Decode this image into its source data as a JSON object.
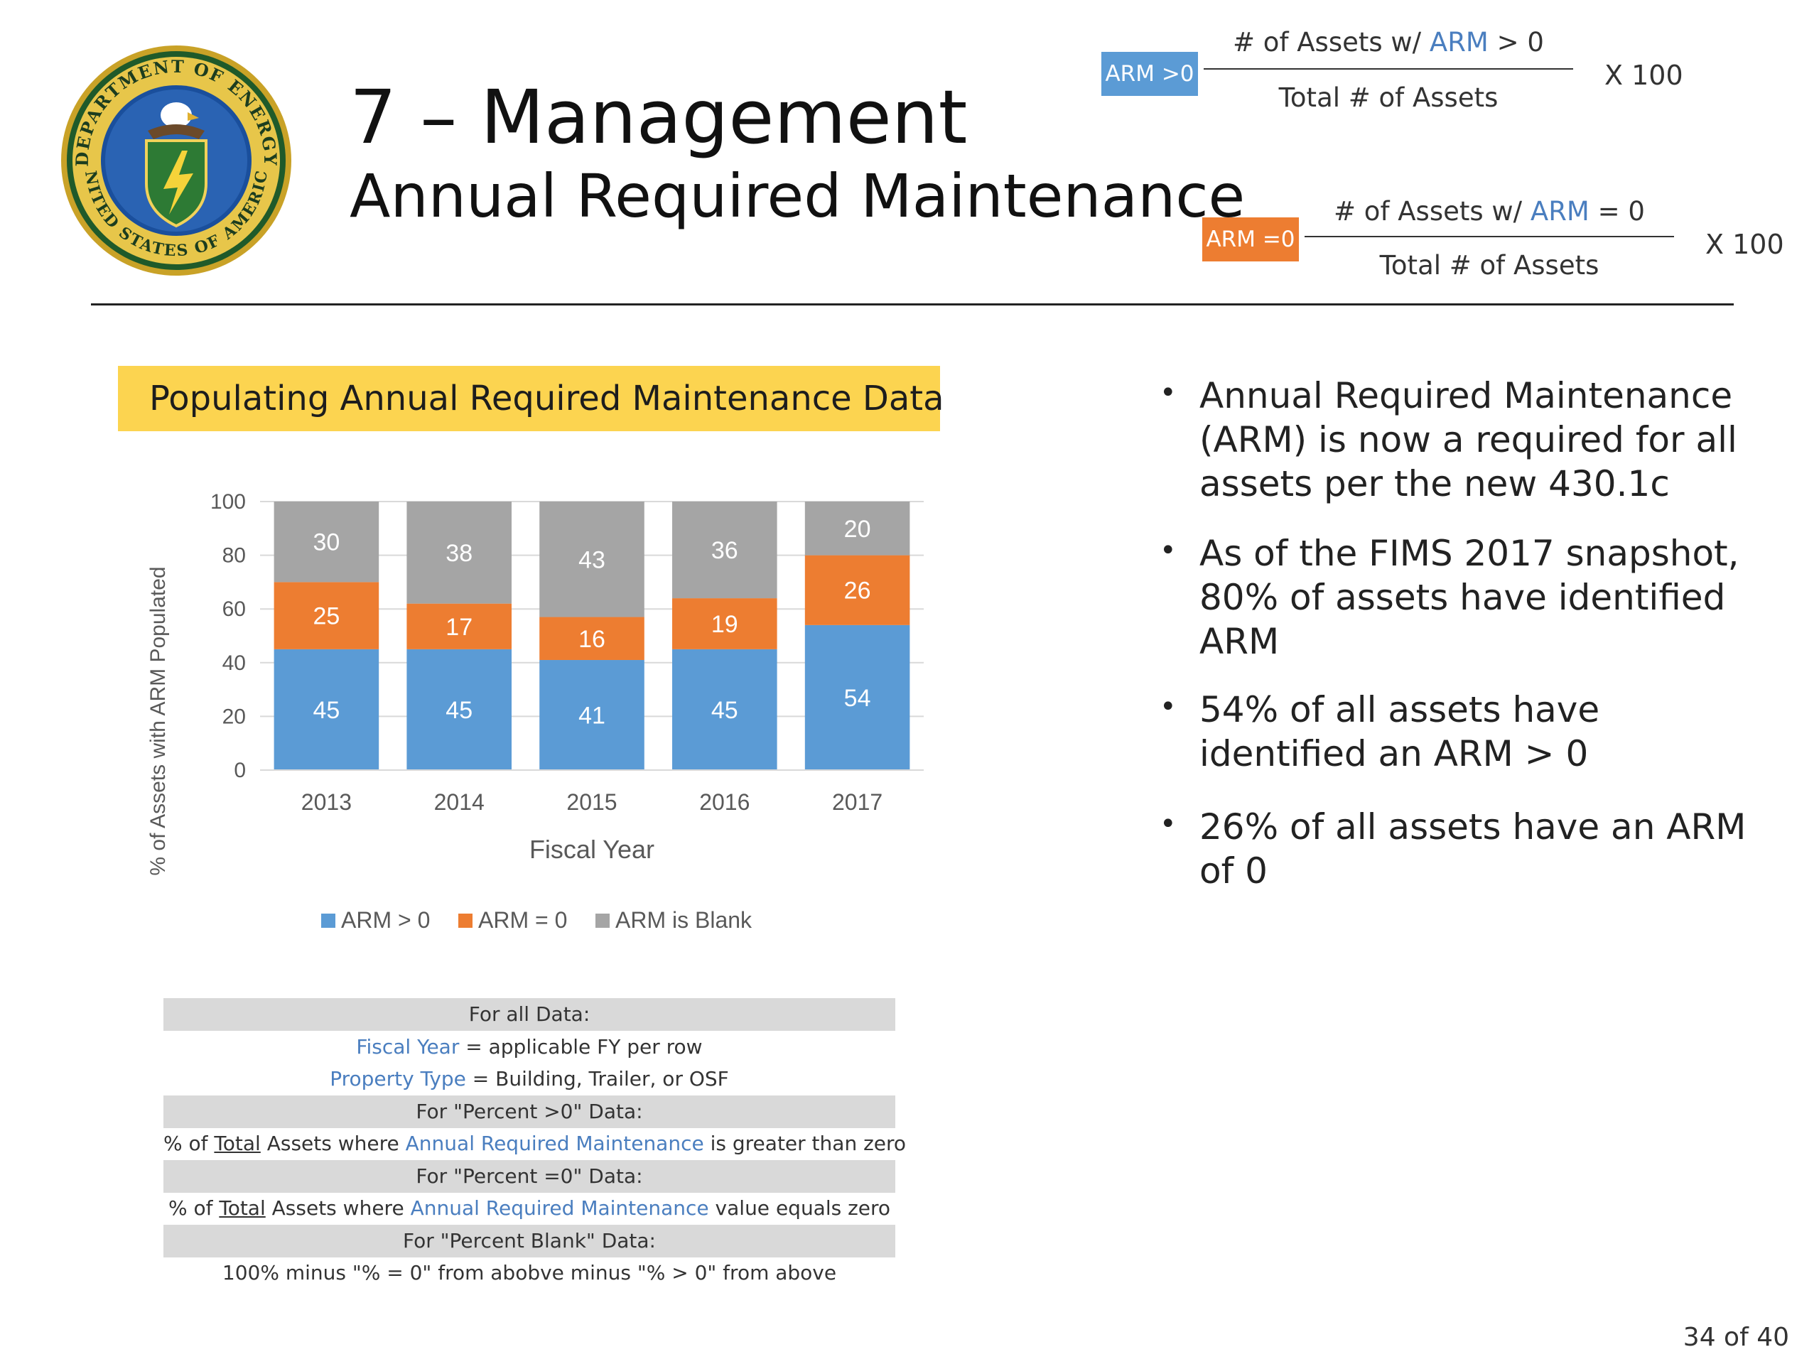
{
  "header": {
    "title": "7 – Management",
    "subtitle": "Annual Required Maintenance",
    "seal_text_top": "DEPARTMENT OF ENERGY",
    "seal_text_bottom": "UNITED STATES OF AMERICA"
  },
  "formulas": [
    {
      "badge": "ARM >0",
      "badge_color": "#5b9bd5",
      "numerator_pre": "# of Assets w/ ",
      "numerator_hl": "ARM",
      "numerator_post": " > 0",
      "denominator": "Total # of Assets",
      "multiplier": "X  100"
    },
    {
      "badge": "ARM =0",
      "badge_color": "#ed7d31",
      "numerator_pre": "# of Assets w/ ",
      "numerator_hl": "ARM",
      "numerator_post": " = 0",
      "denominator": "Total # of Assets",
      "multiplier": "X  100"
    }
  ],
  "chart_banner": "Populating Annual Required Maintenance Data",
  "chart_data": {
    "type": "bar",
    "stacked": true,
    "categories": [
      "2013",
      "2014",
      "2015",
      "2016",
      "2017"
    ],
    "series": [
      {
        "name": "ARM > 0",
        "color": "#5b9bd5",
        "values": [
          45,
          45,
          41,
          45,
          54
        ]
      },
      {
        "name": "ARM = 0",
        "color": "#ed7d31",
        "values": [
          25,
          17,
          16,
          19,
          26
        ]
      },
      {
        "name": "ARM is Blank",
        "color": "#a5a5a5",
        "values": [
          30,
          38,
          43,
          36,
          20
        ]
      }
    ],
    "xlabel": "Fiscal Year",
    "ylabel": "% of Assets with ARM Populated",
    "ylim": [
      0,
      100
    ],
    "yticks": [
      "0",
      "20",
      "40",
      "60",
      "80",
      "100"
    ],
    "grid": true,
    "legend_position": "bottom"
  },
  "definitions": [
    {
      "shade": true,
      "parts": [
        {
          "t": "For all Data:"
        }
      ]
    },
    {
      "shade": false,
      "parts": [
        {
          "t": "Fiscal Year",
          "hl": true
        },
        {
          "t": " = applicable FY per row"
        }
      ]
    },
    {
      "shade": false,
      "parts": [
        {
          "t": "Property Type",
          "hl": true
        },
        {
          "t": " = Building, Trailer, or OSF"
        }
      ]
    },
    {
      "shade": true,
      "parts": [
        {
          "t": "For \"Percent >0\" Data:"
        }
      ]
    },
    {
      "shade": false,
      "parts": [
        {
          "t": "% of "
        },
        {
          "t": "Total",
          "u": true
        },
        {
          "t": " Assets where "
        },
        {
          "t": "Annual Required Maintenance",
          "hl": true
        },
        {
          "t": " is greater than zero"
        }
      ]
    },
    {
      "shade": true,
      "parts": [
        {
          "t": "For \"Percent =0\" Data:"
        }
      ]
    },
    {
      "shade": false,
      "parts": [
        {
          "t": "% of "
        },
        {
          "t": "Total",
          "u": true
        },
        {
          "t": " Assets where "
        },
        {
          "t": "Annual Required Maintenance",
          "hl": true
        },
        {
          "t": " value equals zero"
        }
      ]
    },
    {
      "shade": true,
      "parts": [
        {
          "t": "For \"Percent Blank\" Data:"
        }
      ]
    },
    {
      "shade": false,
      "parts": [
        {
          "t": "100% minus \"% = 0\" from abobve minus \"% > 0\" from above"
        }
      ]
    }
  ],
  "bullets": [
    {
      "lines": [
        "Annual Required Maintenance",
        "(ARM) is now a required for all",
        "assets per the new 430.1c"
      ]
    },
    {
      "lines": [
        "As of the FIMS 2017 snapshot,",
        "80% of assets have identified",
        "ARM"
      ]
    },
    {
      "lines": [
        "54% of all assets have",
        "identified an ARM > 0"
      ]
    },
    {
      "lines": [
        "26% of all assets have an ARM",
        "of 0"
      ]
    }
  ],
  "bullet_symbol": "•",
  "page_number": "34 of 40"
}
